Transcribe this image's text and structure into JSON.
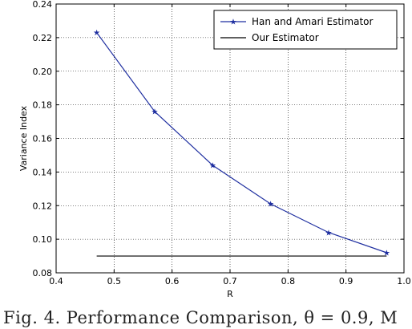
{
  "caption": "Fig. 4. Performance Comparison, θ = 0.9, M",
  "chart_data": {
    "type": "line",
    "xlabel": "R",
    "ylabel": "Variance Index",
    "xlim": [
      0.4,
      1.0
    ],
    "ylim": [
      0.08,
      0.24
    ],
    "grid": true,
    "legend_position": "top-right",
    "x_ticks": [
      "0.4",
      "0.5",
      "0.6",
      "0.7",
      "0.8",
      "0.9",
      "1.0"
    ],
    "y_ticks": [
      "0.08",
      "0.10",
      "0.12",
      "0.14",
      "0.16",
      "0.18",
      "0.20",
      "0.22",
      "0.24"
    ],
    "series": [
      {
        "name": "Han and Amari Estimator",
        "color": "#1f2fa0",
        "marker": "star",
        "x": [
          0.47,
          0.57,
          0.67,
          0.77,
          0.87,
          0.97
        ],
        "y": [
          0.223,
          0.176,
          0.144,
          0.121,
          0.104,
          0.092
        ]
      },
      {
        "name": "Our Estimator",
        "color": "#000000",
        "marker": "none",
        "x": [
          0.47,
          0.97
        ],
        "y": [
          0.09,
          0.09
        ]
      }
    ]
  }
}
